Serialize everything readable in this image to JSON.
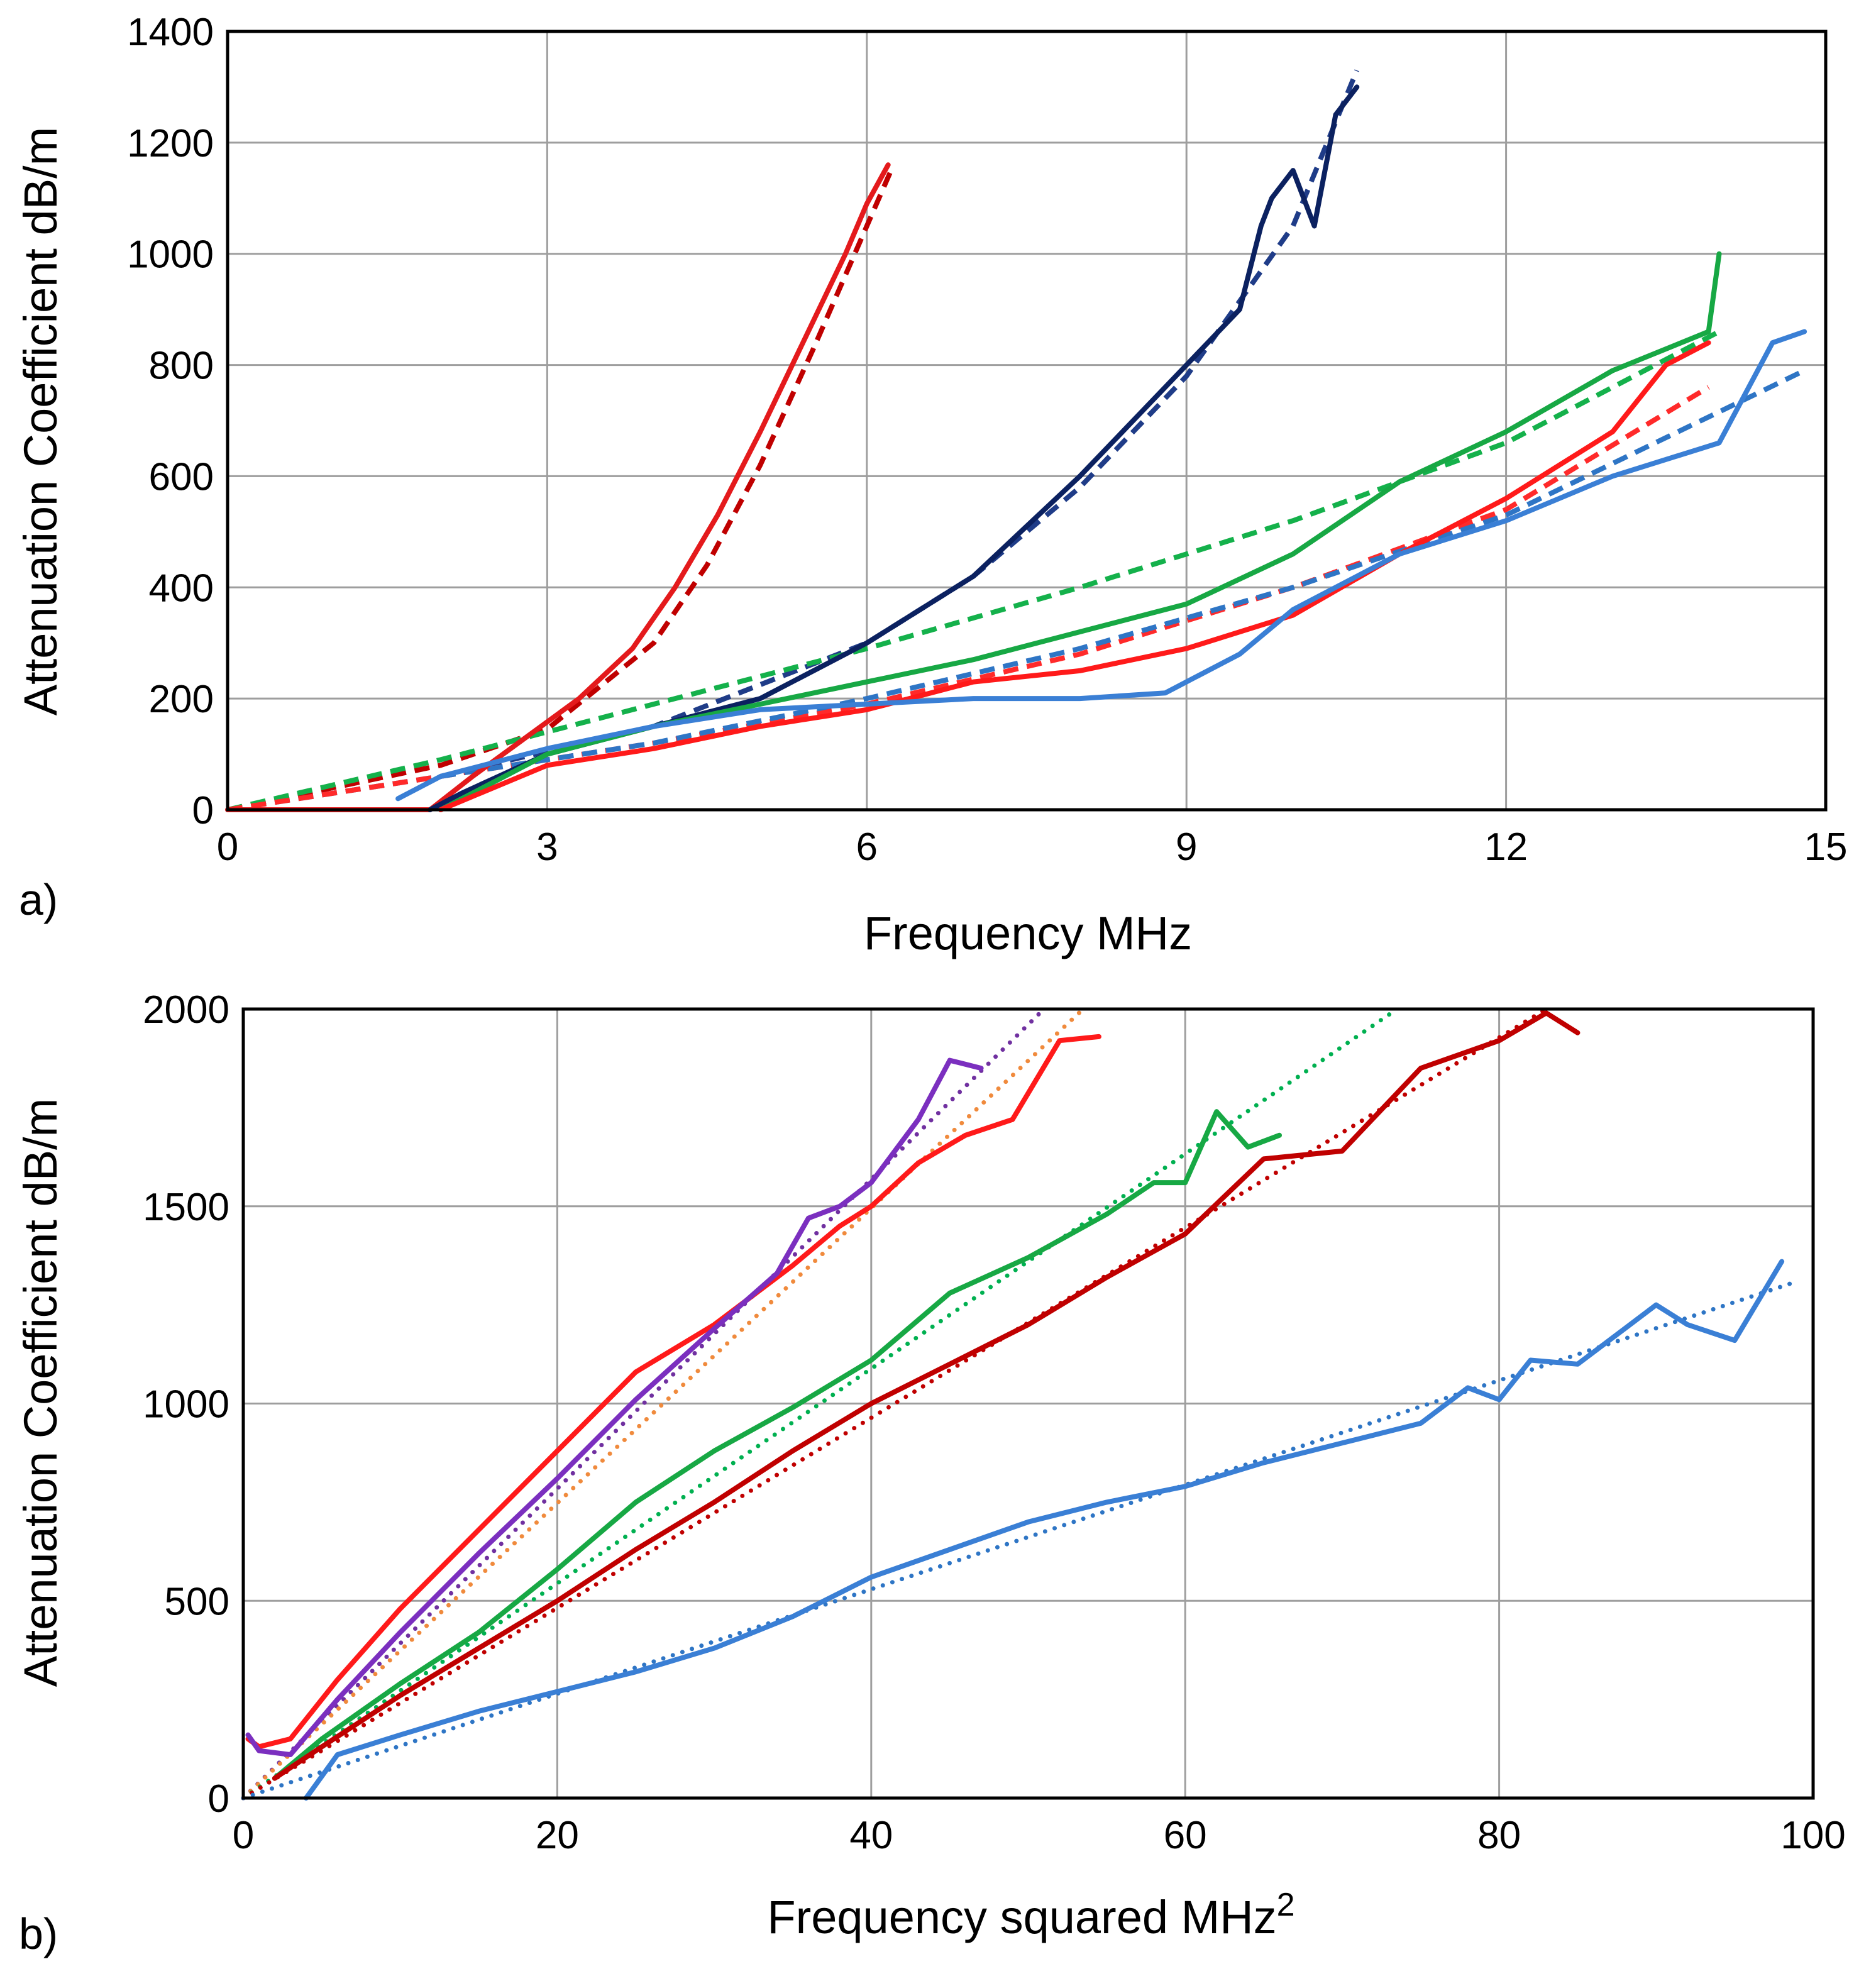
{
  "chart_data": [
    {
      "type": "line",
      "panel_label": "a)",
      "title": "",
      "xlabel": "Frequency  MHz",
      "ylabel": "Attenuation Coefficient  dB/m",
      "xlim": [
        0,
        15
      ],
      "ylim": [
        0,
        1400
      ],
      "xticks": [
        0,
        3,
        6,
        9,
        12,
        15
      ],
      "yticks": [
        0,
        200,
        400,
        600,
        800,
        1000,
        1200,
        1400
      ],
      "xtick_labels": [
        "0",
        "3",
        "6",
        "9",
        "12",
        "15"
      ],
      "ytick_labels": [
        "0",
        "200",
        "400",
        "600",
        "800",
        "1000",
        "1200",
        "1400"
      ],
      "grid": true,
      "series": [
        {
          "name": "red (steep) measured",
          "color": "#e41a1c",
          "style": "solid",
          "x": [
            0,
            1.0,
            1.9,
            2.3,
            2.8,
            3.3,
            3.8,
            4.2,
            4.6,
            5.0,
            5.4,
            5.8,
            6.0,
            6.2
          ],
          "y": [
            0,
            0,
            0,
            60,
            130,
            200,
            290,
            400,
            530,
            680,
            840,
            1000,
            1090,
            1160
          ]
        },
        {
          "name": "red (steep) fit",
          "color": "#c00000",
          "style": "dashed",
          "x": [
            0,
            1.0,
            2.0,
            3.0,
            4.0,
            4.5,
            5.0,
            5.5,
            6.0,
            6.25
          ],
          "y": [
            0,
            40,
            80,
            145,
            300,
            440,
            620,
            830,
            1050,
            1160
          ]
        },
        {
          "name": "navy measured",
          "color": "#0b2160",
          "style": "solid",
          "x": [
            1.9,
            2.2,
            3.0,
            4.0,
            5.0,
            6.0,
            7.0,
            8.0,
            8.5,
            9.0,
            9.5,
            9.7,
            9.8,
            10.0,
            10.2,
            10.4,
            10.6
          ],
          "y": [
            0,
            30,
            100,
            150,
            200,
            300,
            420,
            600,
            700,
            800,
            900,
            1050,
            1100,
            1150,
            1050,
            1250,
            1300
          ]
        },
        {
          "name": "navy fit",
          "color": "#1f3c88",
          "style": "dashed",
          "x": [
            0,
            2.0,
            4.0,
            6.0,
            7.0,
            8.0,
            9.0,
            10.0,
            10.6
          ],
          "y": [
            0,
            60,
            150,
            300,
            420,
            580,
            780,
            1050,
            1330
          ]
        },
        {
          "name": "green measured",
          "color": "#17a844",
          "style": "solid",
          "x": [
            2.0,
            3.0,
            4.0,
            5.0,
            6.0,
            7.0,
            8.0,
            9.0,
            10.0,
            11.0,
            12.0,
            13.0,
            13.9,
            14.0
          ],
          "y": [
            0,
            100,
            150,
            190,
            230,
            270,
            320,
            370,
            460,
            590,
            680,
            790,
            860,
            1000
          ]
        },
        {
          "name": "green fit",
          "color": "#14b14b",
          "style": "dashed",
          "x": [
            0,
            2.0,
            4.0,
            6.0,
            8.0,
            10.0,
            12.0,
            14.0
          ],
          "y": [
            0,
            90,
            190,
            290,
            400,
            520,
            660,
            860
          ]
        },
        {
          "name": "red measured",
          "color": "#ff1a1a",
          "style": "solid",
          "x": [
            2.0,
            3.0,
            4.0,
            5.0,
            6.0,
            7.0,
            8.0,
            9.0,
            10.0,
            11.0,
            12.0,
            13.0,
            13.5,
            13.9
          ],
          "y": [
            0,
            80,
            110,
            150,
            180,
            230,
            250,
            290,
            350,
            460,
            560,
            680,
            800,
            840
          ]
        },
        {
          "name": "red fit",
          "color": "#ff2a2a",
          "style": "dashed",
          "x": [
            0,
            2.0,
            4.0,
            6.0,
            8.0,
            10.0,
            12.0,
            13.9
          ],
          "y": [
            0,
            60,
            120,
            190,
            280,
            400,
            540,
            760
          ]
        },
        {
          "name": "blue measured",
          "color": "#3a7fd5",
          "style": "solid",
          "x": [
            1.6,
            2.0,
            3.0,
            4.0,
            5.0,
            6.0,
            7.0,
            8.0,
            8.8,
            9.5,
            10.0,
            11.0,
            12.0,
            13.0,
            14.0,
            14.5,
            14.8
          ],
          "y": [
            20,
            60,
            110,
            150,
            180,
            190,
            200,
            200,
            210,
            280,
            360,
            460,
            520,
            600,
            660,
            840,
            860
          ]
        },
        {
          "name": "blue fit",
          "color": "#2e75c5",
          "style": "dashed",
          "x": [
            2.0,
            4.0,
            6.0,
            8.0,
            10.0,
            12.0,
            14.8
          ],
          "y": [
            60,
            120,
            200,
            290,
            400,
            530,
            790
          ]
        }
      ]
    },
    {
      "type": "line",
      "panel_label": "b)",
      "title": "",
      "xlabel": "Frequency squared  MHz",
      "xlabel_superscript": "2",
      "ylabel": "Attenuation Coefficient  dB/m",
      "xlim": [
        0,
        100
      ],
      "ylim": [
        0,
        2000
      ],
      "xticks": [
        0,
        20,
        40,
        60,
        80,
        100
      ],
      "yticks": [
        0,
        500,
        1000,
        1500,
        2000
      ],
      "xtick_labels": [
        "0",
        "20",
        "40",
        "60",
        "80",
        "100"
      ],
      "ytick_labels": [
        "0",
        "500",
        "1000",
        "1500",
        "2000"
      ],
      "grid": true,
      "series": [
        {
          "name": "red measured",
          "color": "#ff1a1a",
          "style": "solid",
          "x": [
            0.3,
            1,
            3,
            6,
            10,
            15,
            20,
            25,
            30,
            35,
            38,
            40,
            43,
            46,
            49,
            52,
            54.5
          ],
          "y": [
            150,
            130,
            150,
            300,
            480,
            680,
            880,
            1080,
            1200,
            1350,
            1450,
            1500,
            1610,
            1680,
            1720,
            1920,
            1930
          ]
        },
        {
          "name": "purple measured",
          "color": "#7b2fbf",
          "style": "solid",
          "x": [
            0.3,
            1,
            3,
            6,
            10,
            15,
            20,
            25,
            30,
            34,
            36,
            38,
            40,
            43,
            45,
            47
          ],
          "y": [
            160,
            120,
            110,
            250,
            420,
            620,
            810,
            1010,
            1190,
            1330,
            1470,
            1500,
            1560,
            1720,
            1870,
            1850
          ]
        },
        {
          "name": "purple fit",
          "color": "#7030a0",
          "style": "dotted",
          "x": [
            0,
            51
          ],
          "y": [
            0,
            2000
          ]
        },
        {
          "name": "orange fit",
          "color": "#f08a3c",
          "style": "dotted",
          "x": [
            0,
            53.5
          ],
          "y": [
            0,
            2000
          ]
        },
        {
          "name": "green measured",
          "color": "#17a844",
          "style": "solid",
          "x": [
            2,
            5,
            10,
            15,
            20,
            25,
            30,
            35,
            40,
            45,
            50,
            55,
            58,
            60,
            62,
            64,
            66
          ],
          "y": [
            50,
            150,
            290,
            420,
            580,
            750,
            880,
            990,
            1110,
            1280,
            1370,
            1480,
            1560,
            1560,
            1740,
            1650,
            1680
          ]
        },
        {
          "name": "green fit",
          "color": "#00b050",
          "style": "dotted",
          "x": [
            0,
            73.5
          ],
          "y": [
            0,
            2000
          ]
        },
        {
          "name": "dark red measured",
          "color": "#c00000",
          "style": "solid",
          "x": [
            2,
            5,
            10,
            15,
            20,
            25,
            30,
            35,
            40,
            45,
            50,
            55,
            60,
            65,
            70,
            75,
            80,
            83,
            85
          ],
          "y": [
            50,
            130,
            260,
            380,
            500,
            630,
            750,
            880,
            1000,
            1100,
            1200,
            1320,
            1430,
            1620,
            1640,
            1850,
            1920,
            1990,
            1940
          ]
        },
        {
          "name": "dark red fit",
          "color": "#c00000",
          "style": "dotted",
          "x": [
            0,
            83
          ],
          "y": [
            0,
            2000
          ]
        },
        {
          "name": "blue measured",
          "color": "#3a7fd5",
          "style": "solid",
          "x": [
            4,
            6,
            10,
            15,
            20,
            25,
            30,
            35,
            40,
            45,
            50,
            55,
            60,
            65,
            70,
            75,
            78,
            80,
            82,
            85,
            88,
            90,
            92,
            95,
            98
          ],
          "y": [
            0,
            110,
            160,
            220,
            270,
            320,
            380,
            460,
            560,
            630,
            700,
            750,
            790,
            850,
            900,
            950,
            1040,
            1010,
            1110,
            1100,
            1190,
            1250,
            1200,
            1160,
            1360
          ]
        },
        {
          "name": "blue fit",
          "color": "#2e75c5",
          "style": "dotted",
          "x": [
            0,
            99
          ],
          "y": [
            0,
            1310
          ]
        }
      ]
    }
  ]
}
